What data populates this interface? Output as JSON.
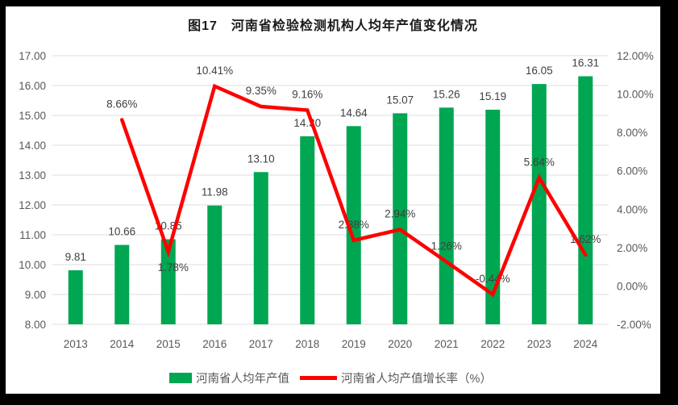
{
  "figure": {
    "title": "图17　河南省检验检测机构人均年产值变化情况"
  },
  "legend": {
    "bar_label": "河南省人均年产值",
    "line_label": "河南省人均产值增长率（%）"
  },
  "colors": {
    "bar": "#00A651",
    "line": "#FF0000",
    "grid": "#DCDCDC",
    "axis_text": "#595959",
    "data_label_text": "#404040",
    "frame": "#000000",
    "background": "#FFFFFF"
  },
  "chart_data": {
    "type": "bar+line combo",
    "title": "图17　河南省检验检测机构人均年产值变化情况",
    "categories": [
      "2013",
      "2014",
      "2015",
      "2016",
      "2017",
      "2018",
      "2019",
      "2020",
      "2021",
      "2022",
      "2023",
      "2024"
    ],
    "series": [
      {
        "name": "河南省人均年产值",
        "type": "bar",
        "axis": "left",
        "values": [
          9.81,
          10.66,
          10.85,
          11.98,
          13.1,
          14.3,
          14.64,
          15.07,
          15.26,
          15.19,
          16.05,
          16.31
        ],
        "labels": [
          "9.81",
          "10.66",
          "10.85",
          "11.98",
          "13.10",
          "14.30",
          "14.64",
          "15.07",
          "15.26",
          "15.19",
          "16.05",
          "16.31"
        ]
      },
      {
        "name": "河南省人均产值增长率（%）",
        "type": "line",
        "axis": "right",
        "values": [
          null,
          8.66,
          1.78,
          10.41,
          9.35,
          9.16,
          2.38,
          2.94,
          1.26,
          -0.44,
          5.64,
          1.62
        ],
        "labels": [
          "",
          "8.66%",
          "1.78%",
          "10.41%",
          "9.35%",
          "9.16%",
          "2.38%",
          "2.94%",
          "1.26%",
          "-0.44%",
          "5.64%",
          "1.62%"
        ]
      }
    ],
    "left_axis": {
      "min": 8,
      "max": 17,
      "step": 1,
      "ticks": [
        "8.00",
        "9.00",
        "10.00",
        "11.00",
        "12.00",
        "13.00",
        "14.00",
        "15.00",
        "16.00",
        "17.00"
      ]
    },
    "right_axis": {
      "min": -2,
      "max": 12,
      "step": 2,
      "ticks": [
        "-2.00%",
        "0.00%",
        "2.00%",
        "4.00%",
        "6.00%",
        "8.00%",
        "10.00%",
        "12.00%"
      ]
    },
    "grid": true,
    "legend_position": "bottom"
  }
}
